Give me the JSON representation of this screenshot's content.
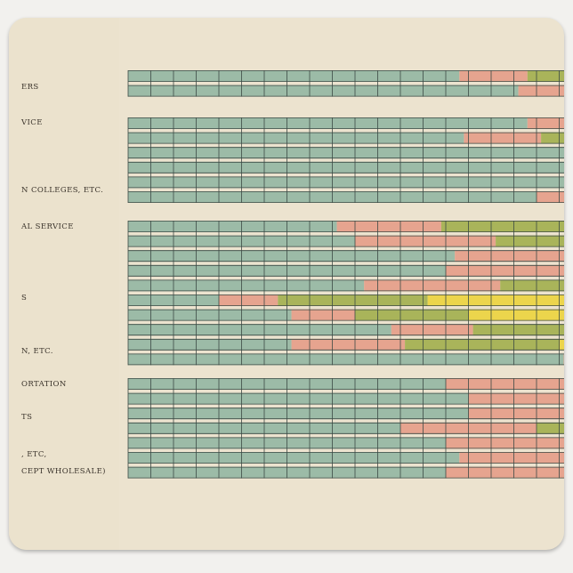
{
  "colors": {
    "pad": "#ece3cf",
    "label_column": "#ebe2cd",
    "green": "#9cbba7",
    "salmon": "#e6a48f",
    "olive": "#a9b45a",
    "yellow": "#ecd54c",
    "grid": "#3c4a45",
    "gap": "#efe8d5"
  },
  "chart_data": {
    "type": "bar",
    "stacked": true,
    "normalized": true,
    "grid": true,
    "xlim": [
      0,
      100
    ],
    "segment_order": [
      "green",
      "salmon",
      "olive",
      "yellow"
    ],
    "labels": [
      "ERS",
      "VICE",
      "N COLLEGES, ETC.",
      "AL SERVICE",
      "S",
      "N, ETC.",
      "ORTATION",
      "TS",
      ", ETC,",
      "CEPT WHOLESALE)"
    ],
    "groups": [
      {
        "rows": [
          [
            73,
            15,
            12,
            0
          ],
          [
            86,
            14,
            0,
            0
          ]
        ]
      },
      {
        "rows": [
          [
            88,
            12,
            0,
            0
          ],
          [
            74,
            17,
            9,
            0
          ],
          [
            100,
            0,
            0,
            0
          ],
          [
            100,
            0,
            0,
            0
          ],
          [
            100,
            0,
            0,
            0
          ],
          [
            90,
            10,
            0,
            0
          ]
        ]
      },
      {
        "rows": [
          [
            46,
            23,
            31,
            0
          ],
          [
            50,
            31,
            19,
            0
          ],
          [
            72,
            28,
            0,
            0
          ],
          [
            70,
            30,
            0,
            0
          ],
          [
            52,
            30,
            18,
            0
          ],
          [
            20,
            13,
            33,
            34
          ],
          [
            36,
            14,
            25,
            25
          ],
          [
            58,
            18,
            24,
            0
          ],
          [
            36,
            25,
            34,
            5
          ],
          [
            96,
            4,
            0,
            0
          ]
        ]
      },
      {
        "rows": [
          [
            70,
            30,
            0,
            0
          ],
          [
            75,
            25,
            0,
            0
          ],
          [
            75,
            25,
            0,
            0
          ],
          [
            60,
            30,
            10,
            0
          ],
          [
            70,
            30,
            0,
            0
          ],
          [
            73,
            27,
            0,
            0
          ],
          [
            70,
            30,
            0,
            0
          ]
        ]
      }
    ]
  }
}
